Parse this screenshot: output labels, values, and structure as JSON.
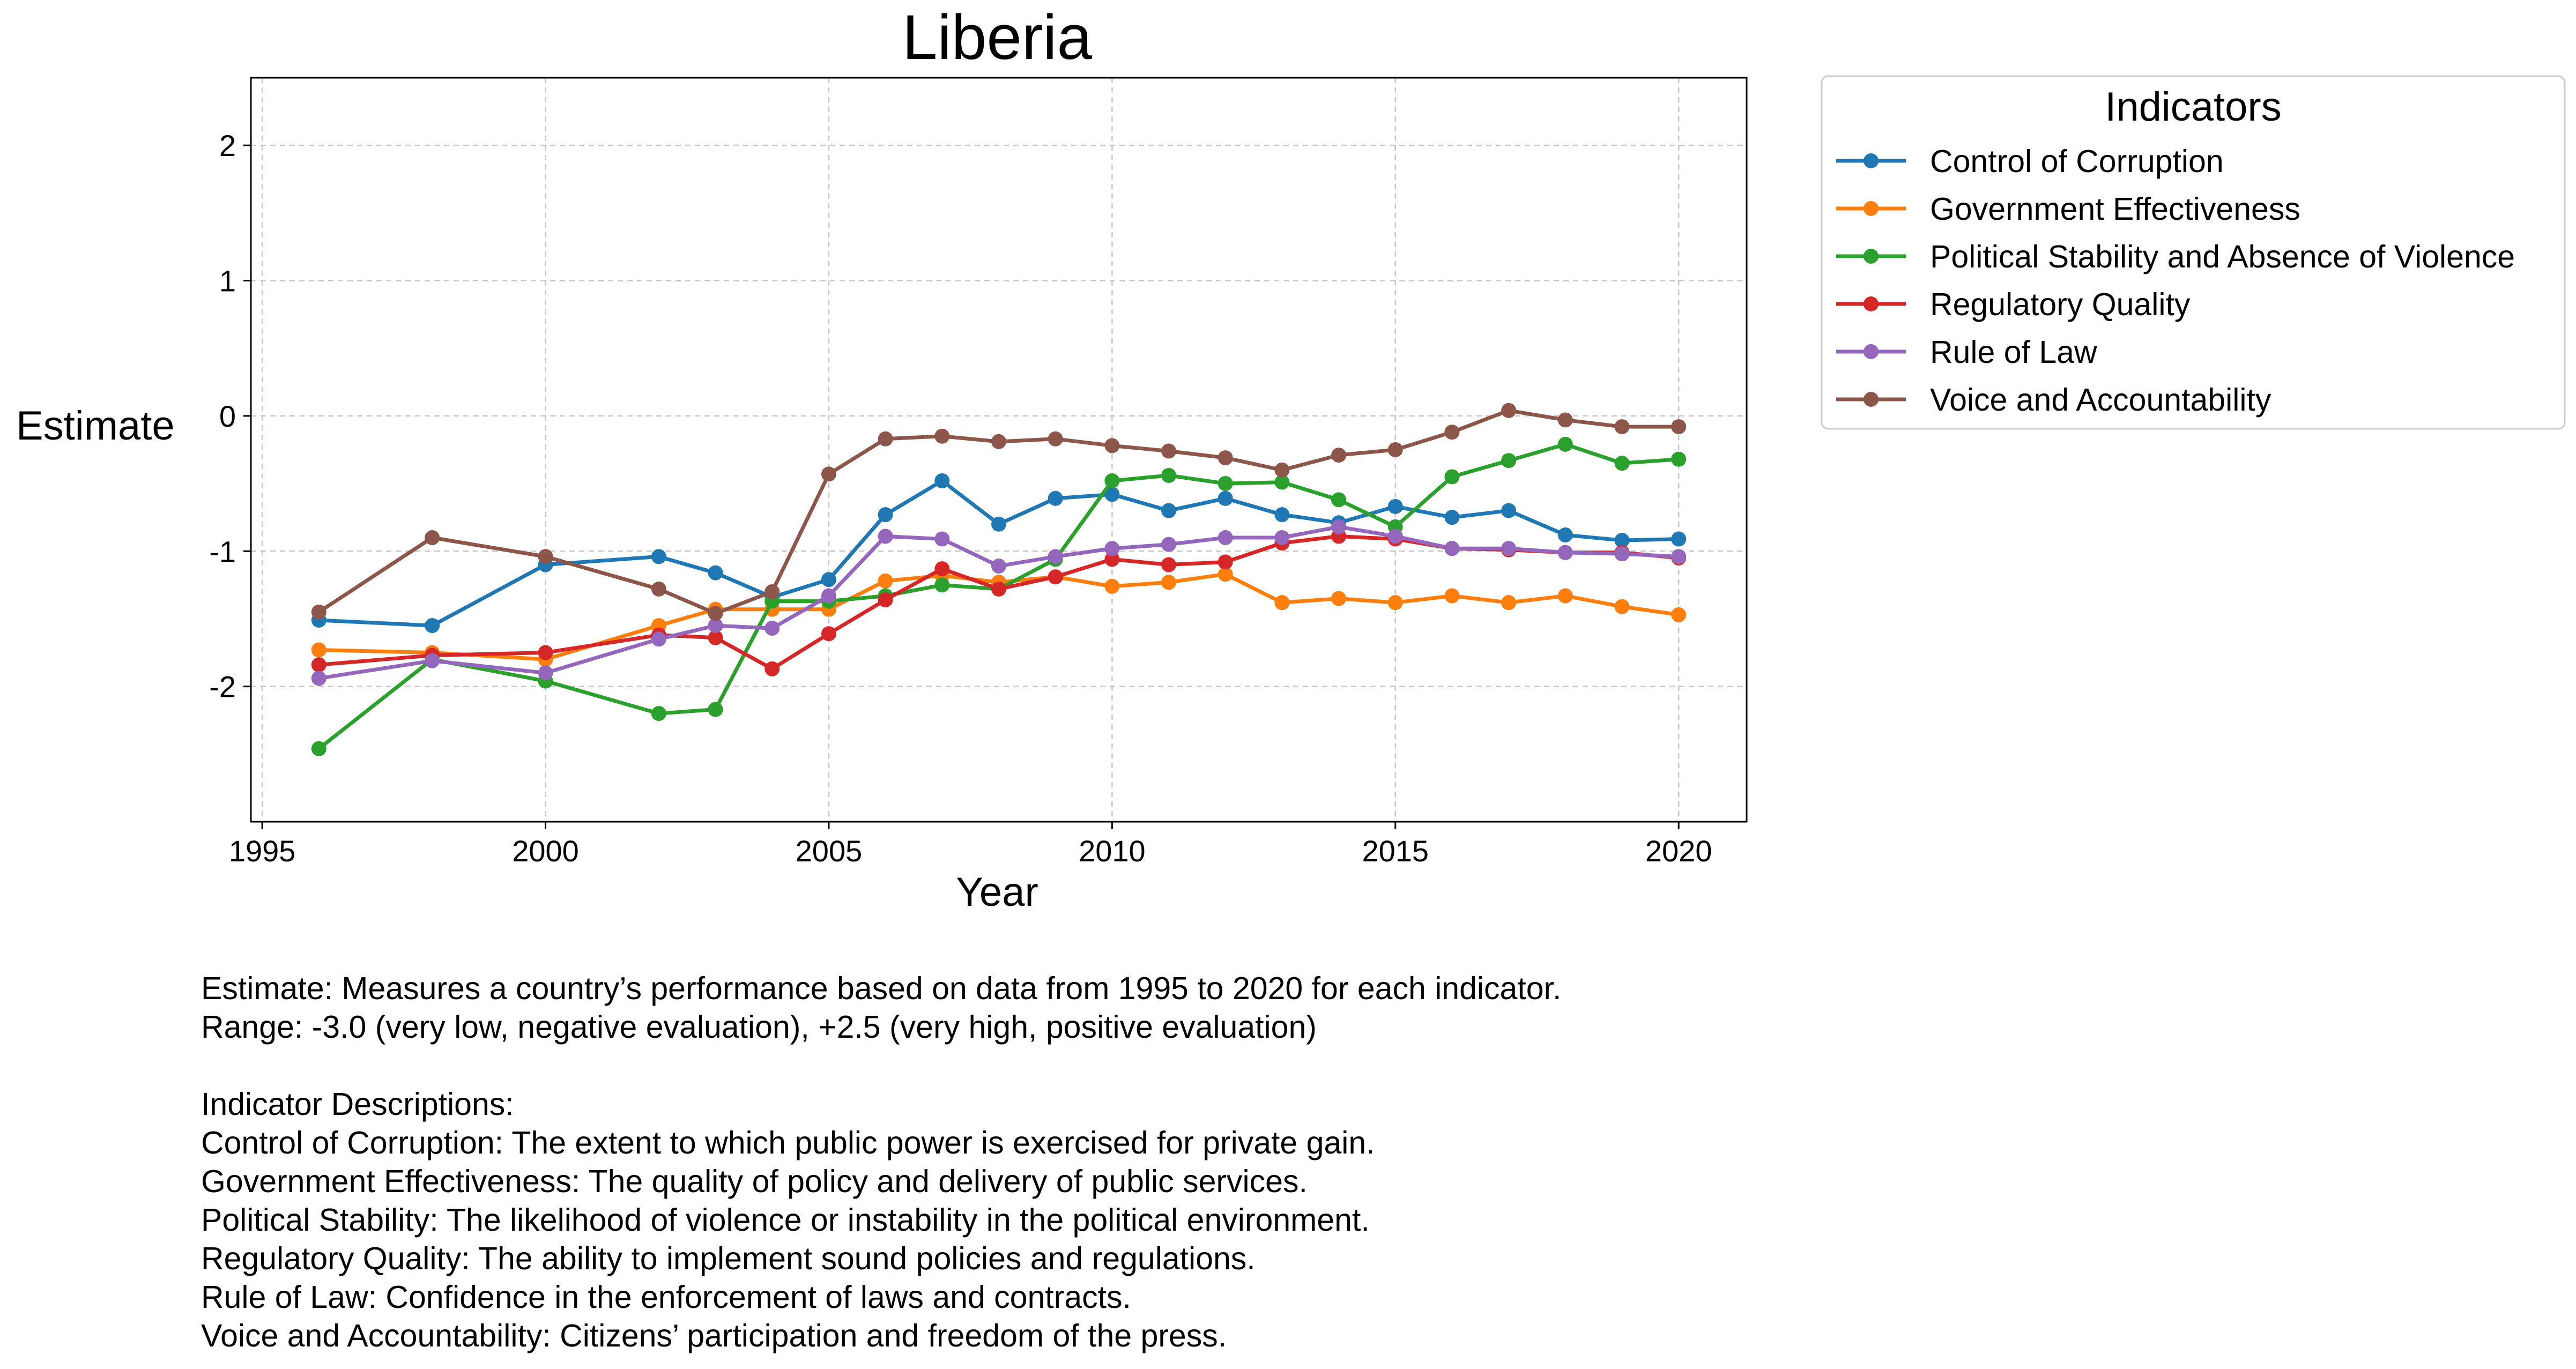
{
  "chart_data": {
    "type": "line",
    "title": "Liberia",
    "xlabel": "Year",
    "ylabel": "Estimate",
    "xlim": [
      1994.8,
      2021.2
    ],
    "ylim": [
      -3.0,
      2.5
    ],
    "xticks": [
      1995,
      2000,
      2005,
      2010,
      2015,
      2020
    ],
    "yticks": [
      -2,
      -1,
      0,
      1,
      2
    ],
    "xtick_labels": [
      "1995",
      "2000",
      "2005",
      "2010",
      "2015",
      "2020"
    ],
    "ytick_labels": [
      "-2",
      "-1",
      "0",
      "1",
      "2"
    ],
    "grid": true,
    "legend_title": "Indicators",
    "legend_position": "outside-top-right",
    "x": [
      1996,
      1998,
      2000,
      2002,
      2003,
      2004,
      2005,
      2006,
      2007,
      2008,
      2009,
      2010,
      2011,
      2012,
      2013,
      2014,
      2015,
      2016,
      2017,
      2018,
      2019,
      2020
    ],
    "series": [
      {
        "name": "Control of Corruption",
        "color": "#1f77b4",
        "values": [
          -1.51,
          -1.55,
          -1.1,
          -1.04,
          -1.16,
          -1.34,
          -1.21,
          -0.73,
          -0.48,
          -0.8,
          -0.61,
          -0.58,
          -0.7,
          -0.61,
          -0.73,
          -0.79,
          -0.67,
          -0.75,
          -0.7,
          -0.88,
          -0.92,
          -0.91
        ]
      },
      {
        "name": "Government Effectiveness",
        "color": "#ff7f0e",
        "values": [
          -1.73,
          -1.75,
          -1.8,
          -1.55,
          -1.43,
          -1.43,
          -1.43,
          -1.22,
          -1.18,
          -1.23,
          -1.19,
          -1.26,
          -1.23,
          -1.17,
          -1.38,
          -1.35,
          -1.38,
          -1.33,
          -1.38,
          -1.33,
          -1.41,
          -1.47
        ]
      },
      {
        "name": "Political Stability and Absence of Violence",
        "color": "#2ca02c",
        "values": [
          -2.46,
          -1.8,
          -1.96,
          -2.2,
          -2.17,
          -1.37,
          -1.37,
          -1.33,
          -1.25,
          -1.28,
          -1.06,
          -0.48,
          -0.44,
          -0.5,
          -0.49,
          -0.62,
          -0.82,
          -0.45,
          -0.33,
          -0.21,
          -0.35,
          -0.32
        ]
      },
      {
        "name": "Regulatory Quality",
        "color": "#d62728",
        "values": [
          -1.84,
          -1.77,
          -1.75,
          -1.62,
          -1.64,
          -1.87,
          -1.61,
          -1.36,
          -1.13,
          -1.28,
          -1.19,
          -1.06,
          -1.1,
          -1.08,
          -0.94,
          -0.89,
          -0.91,
          -0.98,
          -0.99,
          -1.01,
          -1.01,
          -1.05
        ]
      },
      {
        "name": "Rule of Law",
        "color": "#9467bd",
        "values": [
          -1.94,
          -1.81,
          -1.9,
          -1.65,
          -1.55,
          -1.57,
          -1.33,
          -0.89,
          -0.91,
          -1.11,
          -1.04,
          -0.98,
          -0.95,
          -0.9,
          -0.9,
          -0.82,
          -0.89,
          -0.98,
          -0.98,
          -1.01,
          -1.02,
          -1.04
        ]
      },
      {
        "name": "Voice and Accountability",
        "color": "#8c564b",
        "values": [
          -1.45,
          -0.9,
          -1.04,
          -1.28,
          -1.46,
          -1.3,
          -0.43,
          -0.17,
          -0.15,
          -0.19,
          -0.17,
          -0.22,
          -0.26,
          -0.31,
          -0.4,
          -0.29,
          -0.25,
          -0.12,
          0.04,
          -0.03,
          -0.08,
          -0.08
        ]
      }
    ]
  },
  "notes": {
    "line1": "Estimate: Measures a country’s performance based on data from 1995 to 2020 for each indicator.",
    "line2": "Range: -3.0 (very low, negative evaluation), +2.5 (very high, positive evaluation)",
    "heading": "Indicator Descriptions:",
    "descriptions": [
      "Control of Corruption: The extent to which public power is exercised for private gain.",
      "Government Effectiveness: The quality of policy and delivery of public services.",
      "Political Stability: The likelihood of violence or instability in the political environment.",
      "Regulatory Quality: The ability to implement sound policies and regulations.",
      "Rule of Law: Confidence in the enforcement of laws and contracts.",
      "Voice and Accountability: Citizens’ participation and freedom of the press."
    ]
  }
}
